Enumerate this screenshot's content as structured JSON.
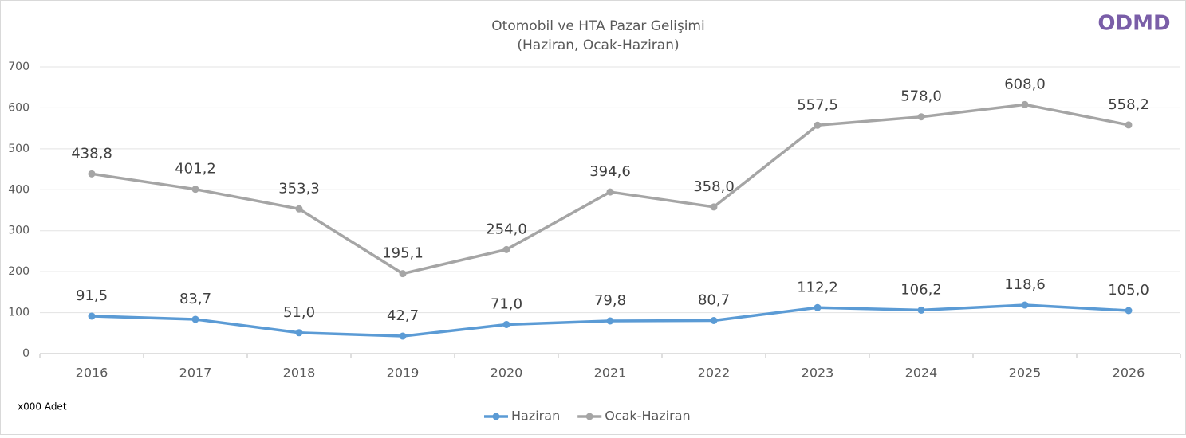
{
  "chart_data": {
    "type": "line",
    "title": "Otomobil ve HTA Pazar Gelişimi",
    "subtitle": "(Haziran, Ocak-Haziran)",
    "logo": "ODMD",
    "unit_label": "x000 Adet",
    "categories": [
      "2016",
      "2017",
      "2018",
      "2019",
      "2020",
      "2021",
      "2022",
      "2023",
      "2024",
      "2025",
      "2026"
    ],
    "series": [
      {
        "name": "Haziran",
        "color": "#5b9bd5",
        "values": [
          91.5,
          83.7,
          51.0,
          42.7,
          71.0,
          79.8,
          80.7,
          112.2,
          106.2,
          118.6,
          105.0
        ],
        "value_labels": [
          "91,5",
          "83,7",
          "51,0",
          "42,7",
          "71,0",
          "79,8",
          "80,7",
          "112,2",
          "106,2",
          "118,6",
          "105,0"
        ]
      },
      {
        "name": "Ocak-Haziran",
        "color": "#a5a5a5",
        "values": [
          438.8,
          401.2,
          353.3,
          195.1,
          254.0,
          394.6,
          358.0,
          557.5,
          578.0,
          608.0,
          558.2
        ],
        "value_labels": [
          "438,8",
          "401,2",
          "353,3",
          "195,1",
          "254,0",
          "394,6",
          "358,0",
          "557,5",
          "578,0",
          "608,0",
          "558,2"
        ]
      }
    ],
    "ylim": [
      0,
      700
    ],
    "yticks": [
      0,
      100,
      200,
      300,
      400,
      500,
      600,
      700
    ],
    "grid": true,
    "legend": "bottom"
  }
}
